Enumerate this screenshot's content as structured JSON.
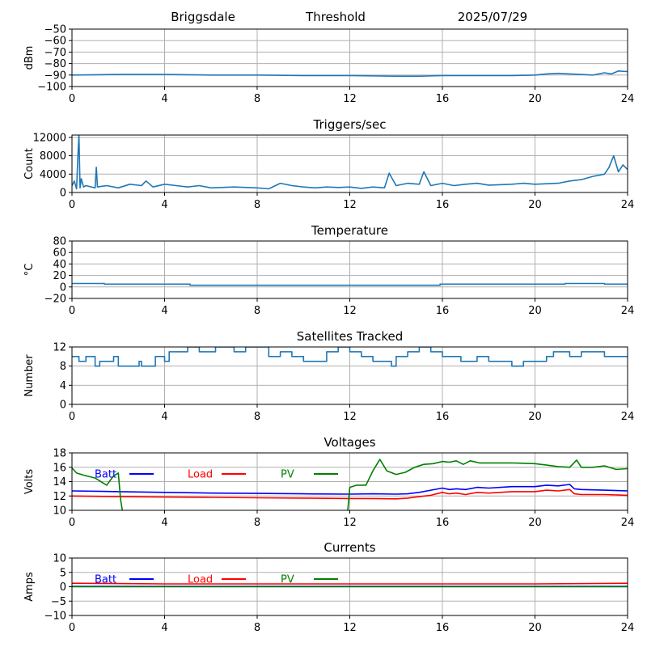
{
  "header": {
    "station": "Briggsdale",
    "mode": "Threshold",
    "date": "2025/07/29"
  },
  "chart_data": [
    {
      "id": "signal",
      "type": "line",
      "title": "",
      "ylabel": "dBm",
      "xlim": [
        0,
        24
      ],
      "ylim": [
        -100,
        -50
      ],
      "xticks": [
        0,
        4,
        8,
        12,
        16,
        20,
        24
      ],
      "yticks": [
        -100,
        -90,
        -80,
        -70,
        -60,
        -50
      ],
      "grid": true,
      "series": [
        {
          "color": "#1f77b4",
          "x": [
            0,
            2,
            4,
            6,
            8,
            10,
            12,
            14,
            15,
            16,
            17,
            18,
            19,
            20,
            20.5,
            21,
            21.5,
            22,
            22.5,
            23,
            23.3,
            23.6,
            24
          ],
          "y": [
            -90,
            -89.5,
            -89.5,
            -90,
            -90,
            -90.5,
            -90.5,
            -91,
            -91,
            -90.5,
            -90.5,
            -90.5,
            -90.5,
            -90,
            -89,
            -88.5,
            -89,
            -89.5,
            -90,
            -88,
            -89,
            -86.5,
            -87
          ]
        }
      ]
    },
    {
      "id": "triggers",
      "type": "line",
      "title": "Triggers/sec",
      "ylabel": "Count",
      "xlim": [
        0,
        24
      ],
      "ylim": [
        0,
        12500
      ],
      "xticks": [
        0,
        4,
        8,
        12,
        16,
        20,
        24
      ],
      "yticks": [
        0,
        4000,
        8000,
        12000
      ],
      "grid": true,
      "series": [
        {
          "color": "#1f77b4",
          "x": [
            0,
            0.1,
            0.2,
            0.25,
            0.3,
            0.35,
            0.4,
            0.5,
            0.6,
            1.0,
            1.05,
            1.1,
            1.5,
            2.0,
            2.5,
            3.0,
            3.2,
            3.5,
            4.0,
            4.5,
            5.0,
            5.5,
            6.0,
            7.0,
            8.0,
            8.5,
            9.0,
            9.5,
            10.0,
            10.5,
            11.0,
            11.5,
            12.0,
            12.5,
            13.0,
            13.5,
            13.7,
            14.0,
            14.5,
            15.0,
            15.2,
            15.5,
            16.0,
            16.5,
            17.0,
            17.5,
            18.0,
            19.0,
            19.5,
            20.0,
            21.0,
            21.5,
            22.0,
            22.5,
            23.0,
            23.2,
            23.4,
            23.6,
            23.8,
            24.0
          ],
          "y": [
            1500,
            2500,
            800,
            7500,
            12500,
            1000,
            3000,
            1200,
            1500,
            1000,
            5500,
            1200,
            1500,
            1000,
            1800,
            1500,
            2500,
            1200,
            1800,
            1500,
            1200,
            1500,
            1000,
            1200,
            1000,
            800,
            2000,
            1500,
            1200,
            1000,
            1200,
            1100,
            1200,
            900,
            1200,
            1000,
            4200,
            1500,
            2000,
            1800,
            4500,
            1500,
            2000,
            1500,
            1800,
            2000,
            1600,
            1800,
            2000,
            1800,
            2000,
            2500,
            2800,
            3500,
            4000,
            5500,
            8000,
            4500,
            6000,
            5000
          ]
        }
      ]
    },
    {
      "id": "temperature",
      "type": "line",
      "title": "Temperature",
      "ylabel": "°C",
      "xlim": [
        0,
        24
      ],
      "ylim": [
        -20,
        80
      ],
      "xticks": [
        0,
        4,
        8,
        12,
        16,
        20,
        24
      ],
      "yticks": [
        -20,
        0,
        20,
        40,
        60,
        80
      ],
      "grid": true,
      "series": [
        {
          "color": "#1f77b4",
          "x": [
            0,
            1.4,
            1.4,
            5.1,
            5.1,
            15.9,
            15.9,
            21.3,
            21.3,
            23.0,
            23.0,
            24.0
          ],
          "y": [
            6,
            6,
            5,
            5,
            3,
            3,
            5,
            5,
            6,
            6,
            5,
            5
          ]
        }
      ]
    },
    {
      "id": "satellites",
      "type": "line",
      "title": "Satellites Tracked",
      "ylabel": "Number",
      "xlim": [
        0,
        24
      ],
      "ylim": [
        0,
        12
      ],
      "xticks": [
        0,
        4,
        8,
        12,
        16,
        20,
        24
      ],
      "yticks": [
        0,
        4,
        8,
        12
      ],
      "grid": true,
      "series": [
        {
          "color": "#1f77b4",
          "x": [
            0,
            0.3,
            0.3,
            0.6,
            0.6,
            1.0,
            1.0,
            1.2,
            1.2,
            1.8,
            1.8,
            2.0,
            2.0,
            2.9,
            2.9,
            3.0,
            3.0,
            3.6,
            3.6,
            4.0,
            4.0,
            4.2,
            4.2,
            5.0,
            5.0,
            5.5,
            5.5,
            6.2,
            6.2,
            7.0,
            7.0,
            7.5,
            7.5,
            8.5,
            8.5,
            9.0,
            9.0,
            9.5,
            9.5,
            10.0,
            10.0,
            11.0,
            11.0,
            11.5,
            11.5,
            12.0,
            12.0,
            12.5,
            12.5,
            13.0,
            13.0,
            13.8,
            13.8,
            14.0,
            14.0,
            14.5,
            14.5,
            15.0,
            15.0,
            15.5,
            15.5,
            16.0,
            16.0,
            16.8,
            16.8,
            17.5,
            17.5,
            18.0,
            18.0,
            19.0,
            19.0,
            19.5,
            19.5,
            20.5,
            20.5,
            20.8,
            20.8,
            21.5,
            21.5,
            22.0,
            22.0,
            23.0,
            23.0,
            24.0
          ],
          "y": [
            10,
            10,
            9,
            9,
            10,
            10,
            8,
            8,
            9,
            9,
            10,
            10,
            8,
            8,
            9,
            9,
            8,
            8,
            10,
            10,
            9,
            9,
            11,
            11,
            12,
            12,
            11,
            11,
            12,
            12,
            11,
            11,
            12,
            12,
            10,
            10,
            11,
            11,
            10,
            10,
            9,
            9,
            11,
            11,
            12,
            12,
            11,
            11,
            10,
            10,
            9,
            9,
            8,
            8,
            10,
            10,
            11,
            11,
            12,
            12,
            11,
            11,
            10,
            10,
            9,
            9,
            10,
            10,
            9,
            9,
            8,
            8,
            9,
            9,
            10,
            10,
            11,
            11,
            10,
            10,
            11,
            11,
            10,
            10
          ]
        }
      ]
    },
    {
      "id": "voltages",
      "type": "line",
      "title": "Voltages",
      "ylabel": "Volts",
      "xlim": [
        0,
        24
      ],
      "ylim": [
        10,
        18
      ],
      "xticks": [
        0,
        4,
        8,
        12,
        16,
        20,
        24
      ],
      "yticks": [
        10,
        12,
        14,
        16,
        18
      ],
      "grid": true,
      "legend": [
        {
          "name": "Batt",
          "color": "#0000ff"
        },
        {
          "name": "Load",
          "color": "#ff0000"
        },
        {
          "name": "PV",
          "color": "#008000"
        }
      ],
      "series": [
        {
          "name": "Batt",
          "color": "#0000ff",
          "x": [
            0,
            2,
            4,
            6,
            8,
            10,
            12,
            13,
            14,
            14.5,
            15,
            15.5,
            16,
            16.3,
            16.6,
            17,
            17.5,
            18,
            19,
            20,
            20.5,
            21,
            21.5,
            21.7,
            22,
            23,
            24
          ],
          "y": [
            12.7,
            12.6,
            12.5,
            12.4,
            12.35,
            12.3,
            12.25,
            12.3,
            12.25,
            12.3,
            12.5,
            12.8,
            13.1,
            12.9,
            13.0,
            12.9,
            13.2,
            13.1,
            13.3,
            13.3,
            13.5,
            13.4,
            13.6,
            13.0,
            12.9,
            12.8,
            12.7
          ]
        },
        {
          "name": "Load",
          "color": "#ff0000",
          "x": [
            0,
            2,
            4,
            6,
            8,
            10,
            12,
            13,
            14,
            14.5,
            15,
            15.5,
            16,
            16.3,
            16.6,
            17,
            17.5,
            18,
            19,
            20,
            20.5,
            21,
            21.5,
            21.7,
            22,
            23,
            24
          ],
          "y": [
            12.0,
            11.9,
            11.85,
            11.8,
            11.75,
            11.7,
            11.65,
            11.65,
            11.6,
            11.7,
            11.9,
            12.1,
            12.5,
            12.3,
            12.4,
            12.2,
            12.5,
            12.4,
            12.6,
            12.6,
            12.8,
            12.7,
            12.9,
            12.3,
            12.2,
            12.2,
            12.1
          ]
        },
        {
          "name": "PV",
          "color": "#008000",
          "x": [
            0,
            0.2,
            0.5,
            1.0,
            1.5,
            1.8,
            2.0,
            2.1,
            2.2,
            11.9,
            12.0,
            12.3,
            12.7,
            13.0,
            13.3,
            13.6,
            14.0,
            14.4,
            14.8,
            15.2,
            15.6,
            16.0,
            16.3,
            16.6,
            16.9,
            17.2,
            17.6,
            18,
            19,
            20,
            20.5,
            21,
            21.5,
            21.8,
            22.0,
            22.5,
            23.0,
            23.5,
            24
          ],
          "y": [
            15.9,
            15.2,
            14.9,
            14.5,
            13.5,
            14.8,
            15.2,
            11.5,
            9.5,
            9.5,
            13.2,
            13.5,
            13.5,
            15.5,
            17.1,
            15.5,
            15.0,
            15.3,
            16.0,
            16.4,
            16.5,
            16.8,
            16.7,
            16.9,
            16.4,
            16.9,
            16.6,
            16.6,
            16.6,
            16.5,
            16.3,
            16.1,
            16.0,
            17.0,
            16.0,
            16.0,
            16.2,
            15.7,
            15.8
          ]
        }
      ]
    },
    {
      "id": "currents",
      "type": "line",
      "title": "Currents",
      "ylabel": "Amps",
      "xlim": [
        0,
        24
      ],
      "ylim": [
        -10,
        10
      ],
      "xticks": [
        0,
        4,
        8,
        12,
        16,
        20,
        24
      ],
      "yticks": [
        -10,
        -5,
        0,
        5,
        10
      ],
      "grid": true,
      "legend": [
        {
          "name": "Batt",
          "color": "#0000ff"
        },
        {
          "name": "Load",
          "color": "#ff0000"
        },
        {
          "name": "PV",
          "color": "#008000"
        }
      ],
      "series": [
        {
          "name": "Batt",
          "color": "#0000ff",
          "x": [
            0,
            24
          ],
          "y": [
            0.1,
            0.1
          ]
        },
        {
          "name": "Load",
          "color": "#ff0000",
          "x": [
            0,
            2,
            4,
            8,
            12,
            16,
            20,
            24
          ],
          "y": [
            1.2,
            1.1,
            1.0,
            1.0,
            1.0,
            1.0,
            1.0,
            1.2
          ]
        },
        {
          "name": "PV",
          "color": "#008000",
          "x": [
            0,
            24
          ],
          "y": [
            0.0,
            0.0
          ]
        }
      ]
    }
  ]
}
